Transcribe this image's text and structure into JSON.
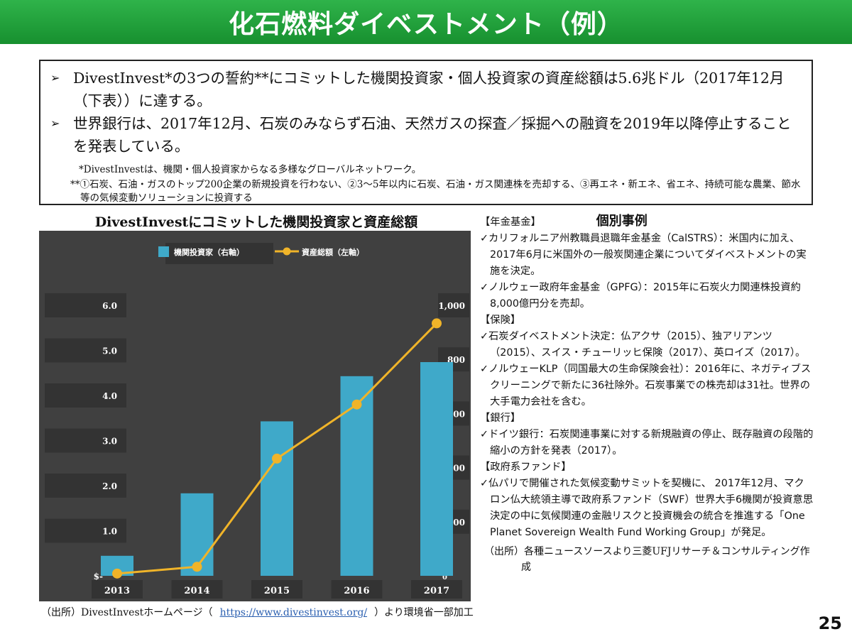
{
  "header": {
    "title": "化石燃料ダイベストメント（例）"
  },
  "summary": {
    "bullets": [
      "DivestInvest*の3つの誓約**にコミットした機関投資家・個人投資家の資産総額は5.6兆ドル（2017年12月（下表））に達する。",
      "世界銀行は、2017年12月、石炭のみならず石油、天然ガスの探査／採掘への融資を2019年以降停止することを発表している。"
    ],
    "note1": "*DivestInvestは、機関・個人投資家からなる多様なグローバルネットワーク。",
    "note2": "**①石炭、石油・ガスのトップ200企業の新規投資を行わない、②3～5年以内に石炭、石油・ガス関連株を売却する、③再エネ・新エネ、省エネ、持続可能な農業、節水等の気候変動ソリューションに投資する"
  },
  "chart_title": "DivestInvestにコミットした機関投資家と資産総額",
  "chart_data": {
    "type": "bar",
    "categories": [
      "2013",
      "2014",
      "2015",
      "2016",
      "2017"
    ],
    "series": [
      {
        "name": "機関投資家（右軸）",
        "type": "bar",
        "axis": "right",
        "color": "#3fa9c9",
        "values": [
          74,
          305,
          571,
          738,
          790
        ]
      },
      {
        "name": "資産総額（左軸）",
        "type": "line",
        "axis": "left",
        "color": "#f0b429",
        "values": [
          0.05,
          0.2,
          2.6,
          3.8,
          5.6
        ]
      }
    ],
    "left_axis": {
      "ticks": [
        "$-",
        "1.0",
        "2.0",
        "3.0",
        "4.0",
        "5.0",
        "6.0"
      ],
      "ylim": [
        0,
        6
      ]
    },
    "right_axis": {
      "ticks": [
        "0",
        "200",
        "400",
        "600",
        "800",
        "1,000"
      ],
      "ylim": [
        0,
        1000
      ]
    },
    "legend_position": "top",
    "background": "#404040"
  },
  "source_left": {
    "prefix": "（出所）DivestInvestホームページ（",
    "url": "https://www.divestinvest.org/",
    "suffix": "）より環境省一部加工"
  },
  "cases": {
    "title": "個別事例",
    "sections": [
      {
        "label": "【年金基金】",
        "items": [
          "✓カリフォルニア州教職員退職年金基金（CalSTRS）：米国内に加え、2017年6月に米国外の一般炭関連企業についてダイベストメントの実施を決定。",
          "✓ノルウェー政府年金基金（GPFG）：2015年に石炭火力関連株投資約8,000億円分を売却。"
        ]
      },
      {
        "label": "【保険】",
        "items": [
          "✓石炭ダイベストメント決定：仏アクサ（2015）、独アリアンツ（2015）、スイス・チューリッヒ保険（2017）、英ロイズ（2017）。",
          "✓ノルウェーKLP（同国最大の生命保険会社）：2016年に、ネガティブスクリーニングで新たに36社除外。石炭事業での株売却は31社。世界の大手電力会社を含む。"
        ]
      },
      {
        "label": "【銀行】",
        "items": [
          "✓ドイツ銀行：石炭関連事業に対する新規融資の停止、既存融資の段階的縮小の方針を発表（2017）。"
        ]
      },
      {
        "label": "【政府系ファンド】",
        "items": [
          "✓仏パリで開催された気候変動サミットを契機に、 2017年12月、マクロン仏大統領主導で政府系ファンド（SWF）世界大手6機関が投資意思決定の中に気候関連の金融リスクと投資機会の統合を推進する「One Planet Sovereign Wealth Fund Working Group」が発足。"
        ]
      }
    ],
    "source": "（出所）各種ニュースソースより三菱UFJリサーチ＆コンサルティング作成"
  },
  "page_number": "25"
}
